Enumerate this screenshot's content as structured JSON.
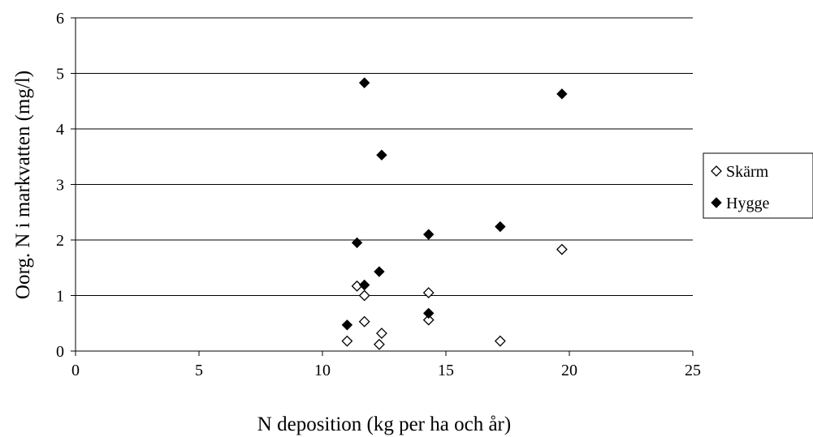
{
  "chart_data": {
    "type": "scatter",
    "xlabel": "N deposition (kg per ha och år)",
    "ylabel": "Oorg. N i markvatten (mg/l)",
    "xlim": [
      0,
      25
    ],
    "ylim": [
      0,
      6
    ],
    "xticks": [
      0,
      5,
      10,
      15,
      20,
      25
    ],
    "yticks": [
      0,
      1,
      2,
      3,
      4,
      5,
      6
    ],
    "grid": "horizontal",
    "legend_position": "right",
    "series": [
      {
        "name": "Skärm",
        "marker": "open-diamond",
        "color": "#000000",
        "points": [
          {
            "x": 11.0,
            "y": 0.18
          },
          {
            "x": 11.4,
            "y": 1.17
          },
          {
            "x": 11.7,
            "y": 1.0
          },
          {
            "x": 11.7,
            "y": 0.53
          },
          {
            "x": 12.3,
            "y": 0.12
          },
          {
            "x": 12.4,
            "y": 0.32
          },
          {
            "x": 14.3,
            "y": 1.05
          },
          {
            "x": 14.3,
            "y": 0.56
          },
          {
            "x": 17.2,
            "y": 0.18
          },
          {
            "x": 19.7,
            "y": 1.83
          }
        ]
      },
      {
        "name": "Hygge",
        "marker": "filled-diamond",
        "color": "#000000",
        "points": [
          {
            "x": 11.0,
            "y": 0.47
          },
          {
            "x": 11.4,
            "y": 1.95
          },
          {
            "x": 11.7,
            "y": 4.83
          },
          {
            "x": 11.7,
            "y": 1.19
          },
          {
            "x": 12.3,
            "y": 1.43
          },
          {
            "x": 12.4,
            "y": 3.53
          },
          {
            "x": 14.3,
            "y": 2.1
          },
          {
            "x": 14.3,
            "y": 0.68
          },
          {
            "x": 17.2,
            "y": 2.24
          },
          {
            "x": 19.7,
            "y": 4.63
          }
        ]
      }
    ]
  }
}
